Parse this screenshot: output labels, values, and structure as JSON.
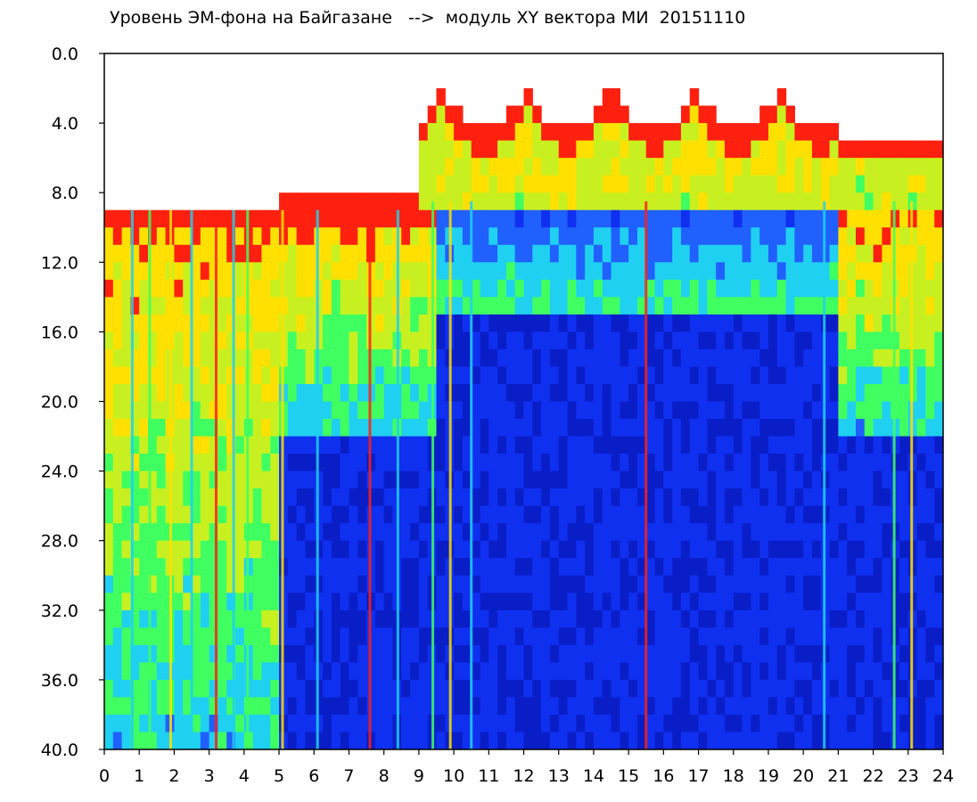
{
  "title": "Уровень ЭМ-фона на Байгазане   -->  модуль XY вектора МИ  20151110",
  "chart_data": {
    "type": "heatmap",
    "title": "Уровень ЭМ-фона на Байгазане   -->  модуль XY вектора МИ  20151110",
    "xlabel": "",
    "ylabel": "",
    "xlim": [
      0,
      24
    ],
    "ylim": [
      0,
      40
    ],
    "y_inverted": true,
    "x_ticks": [
      "0",
      "1",
      "2",
      "3",
      "4",
      "5",
      "6",
      "7",
      "8",
      "9",
      "10",
      "11",
      "12",
      "13",
      "14",
      "15",
      "16",
      "17",
      "18",
      "19",
      "20",
      "21",
      "22",
      "23",
      "24"
    ],
    "y_ticks": [
      "0.0",
      "4.0",
      "8.0",
      "12.0",
      "16.0",
      "20.0",
      "24.0",
      "28.0",
      "32.0",
      "36.0",
      "40.0"
    ],
    "colorscale": [
      "#0a1ec8",
      "#1030f0",
      "#2060ff",
      "#20d0f0",
      "#40ff60",
      "#c8f020",
      "#ffe000",
      "#ff2010",
      "#ffffff"
    ],
    "grid": false,
    "bright_vertical_streaks_hours": [
      0.8,
      1.3,
      1.9,
      2.5,
      3.2,
      3.7,
      4.1,
      5.1,
      6.1,
      7.6,
      8.4,
      9.4,
      9.9,
      10.5,
      15.5,
      20.6,
      22.6,
      23.1
    ]
  }
}
